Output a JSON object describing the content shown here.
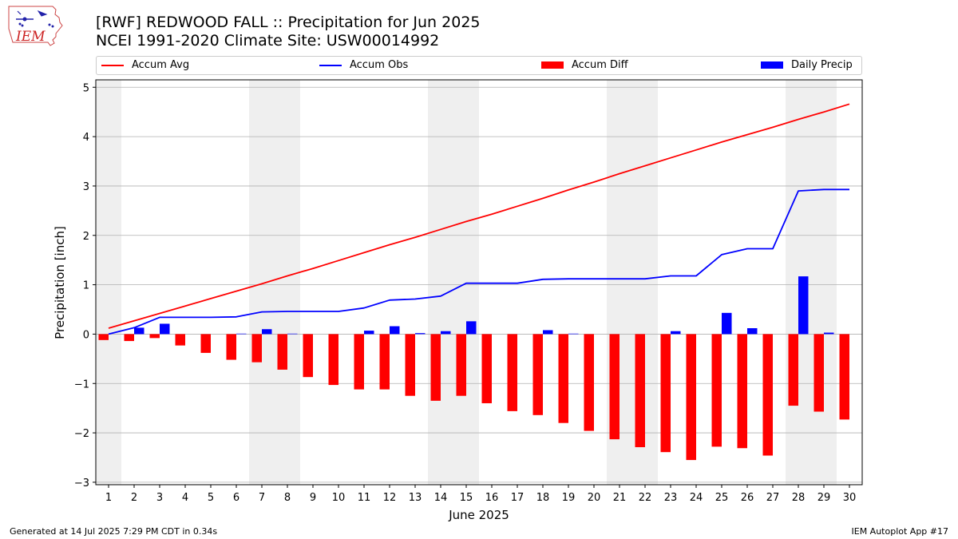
{
  "header": {
    "title_line1": "[RWF] REDWOOD FALL :: Precipitation for Jun 2025",
    "title_line2": "NCEI 1991-2020 Climate Site: USW00014992"
  },
  "logo": {
    "text": "IEM",
    "icon": "iowa-state-outline-weather-icon"
  },
  "footer": {
    "left": "Generated at 14 Jul 2025 7:29 PM CDT in 0.34s",
    "right": "IEM Autoplot App #17"
  },
  "chart_data": {
    "type": "bar",
    "title": "[RWF] REDWOOD FALL :: Precipitation for Jun 2025",
    "subtitle": "NCEI 1991-2020 Climate Site: USW00014992",
    "xlabel": "June 2025",
    "ylabel": "Precipitation [inch]",
    "x": [
      1,
      2,
      3,
      4,
      5,
      6,
      7,
      8,
      9,
      10,
      11,
      12,
      13,
      14,
      15,
      16,
      17,
      18,
      19,
      20,
      21,
      22,
      23,
      24,
      25,
      26,
      27,
      28,
      29,
      30
    ],
    "ylim": [
      -3.05,
      5.15
    ],
    "yticks": [
      -3,
      -2,
      -1,
      0,
      1,
      2,
      3,
      4,
      5
    ],
    "ytick_labels": [
      "−3",
      "−2",
      "−1",
      "0",
      "1",
      "2",
      "3",
      "4",
      "5"
    ],
    "grid": "horizontal",
    "weekend_shading": [
      [
        0.5,
        1.5
      ],
      [
        6.5,
        8.5
      ],
      [
        13.5,
        15.5
      ],
      [
        20.5,
        22.5
      ],
      [
        27.5,
        29.5
      ]
    ],
    "legend_position": "top (above plot, 4 columns)",
    "series": [
      {
        "name": "Accum Avg",
        "kind": "line",
        "color": "#ff0000",
        "values": [
          0.12,
          0.27,
          0.42,
          0.57,
          0.72,
          0.87,
          1.02,
          1.18,
          1.33,
          1.49,
          1.65,
          1.81,
          1.96,
          2.12,
          2.28,
          2.43,
          2.59,
          2.75,
          2.92,
          3.08,
          3.25,
          3.41,
          3.57,
          3.73,
          3.89,
          4.04,
          4.19,
          4.35,
          4.5,
          4.66
        ]
      },
      {
        "name": "Accum Obs",
        "kind": "line",
        "color": "#0000ff",
        "values": [
          0.0,
          0.13,
          0.34,
          0.34,
          0.34,
          0.35,
          0.45,
          0.46,
          0.46,
          0.46,
          0.53,
          0.69,
          0.71,
          0.77,
          1.03,
          1.03,
          1.03,
          1.11,
          1.12,
          1.12,
          1.12,
          1.12,
          1.18,
          1.18,
          1.61,
          1.73,
          1.73,
          2.9,
          2.93,
          2.93
        ]
      },
      {
        "name": "Accum Diff",
        "kind": "bar",
        "color": "#ff0000",
        "values": [
          -0.12,
          -0.14,
          -0.08,
          -0.23,
          -0.38,
          -0.52,
          -0.57,
          -0.72,
          -0.87,
          -1.03,
          -1.12,
          -1.12,
          -1.25,
          -1.35,
          -1.25,
          -1.4,
          -1.56,
          -1.64,
          -1.8,
          -1.96,
          -2.13,
          -2.29,
          -2.39,
          -2.55,
          -2.28,
          -2.31,
          -2.46,
          -1.45,
          -1.57,
          -1.73
        ]
      },
      {
        "name": "Daily Precip",
        "kind": "bar",
        "color": "#0000ff",
        "values": [
          0.0,
          0.13,
          0.21,
          0.0,
          0.0,
          0.01,
          0.1,
          0.01,
          0.0,
          0.0,
          0.07,
          0.16,
          0.02,
          0.06,
          0.26,
          0.0,
          0.0,
          0.08,
          0.01,
          0.0,
          0.0,
          0.0,
          0.06,
          0.0,
          0.43,
          0.12,
          0.0,
          1.17,
          0.03,
          0.0
        ]
      }
    ]
  }
}
